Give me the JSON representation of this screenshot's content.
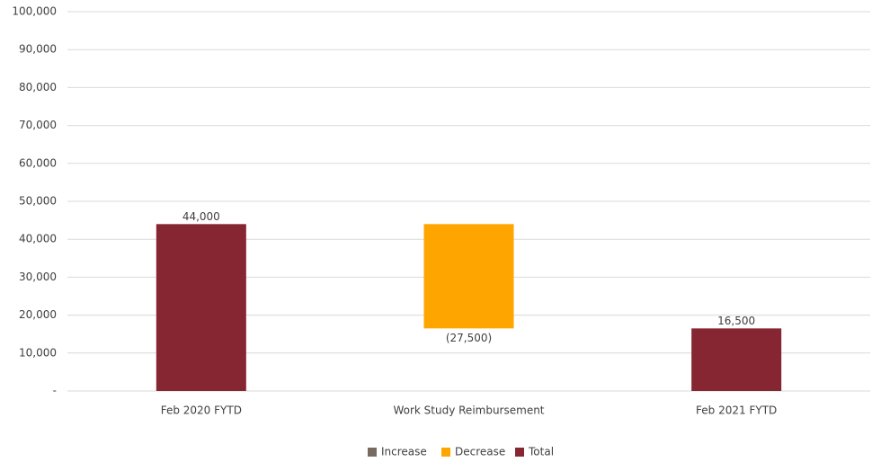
{
  "chart_data": {
    "type": "waterfall",
    "categories": [
      "Feb 2020 FYTD",
      "Work Study Reimbursement",
      "Feb 2021 FYTD"
    ],
    "values": [
      44000,
      -27500,
      16500
    ],
    "value_labels": [
      "44,000",
      "(27,500)",
      "16,500"
    ],
    "colors": [
      "#862633",
      "#ffa500",
      "#862633"
    ],
    "legend": [
      {
        "name": "Increase",
        "color": "#776b5f"
      },
      {
        "name": "Decrease",
        "color": "#ffa500"
      },
      {
        "name": "Total",
        "color": "#862633"
      }
    ],
    "ylim": [
      0,
      100000
    ],
    "yticks": [
      {
        "value": 0,
        "label": "-"
      },
      {
        "value": 10000,
        "label": "10,000"
      },
      {
        "value": 20000,
        "label": "20,000"
      },
      {
        "value": 30000,
        "label": "30,000"
      },
      {
        "value": 40000,
        "label": "40,000"
      },
      {
        "value": 50000,
        "label": "50,000"
      },
      {
        "value": 60000,
        "label": "60,000"
      },
      {
        "value": 70000,
        "label": "70,000"
      },
      {
        "value": 80000,
        "label": "80,000"
      },
      {
        "value": 90000,
        "label": "90,000"
      },
      {
        "value": 100000,
        "label": "100,000"
      }
    ],
    "grid": true
  }
}
